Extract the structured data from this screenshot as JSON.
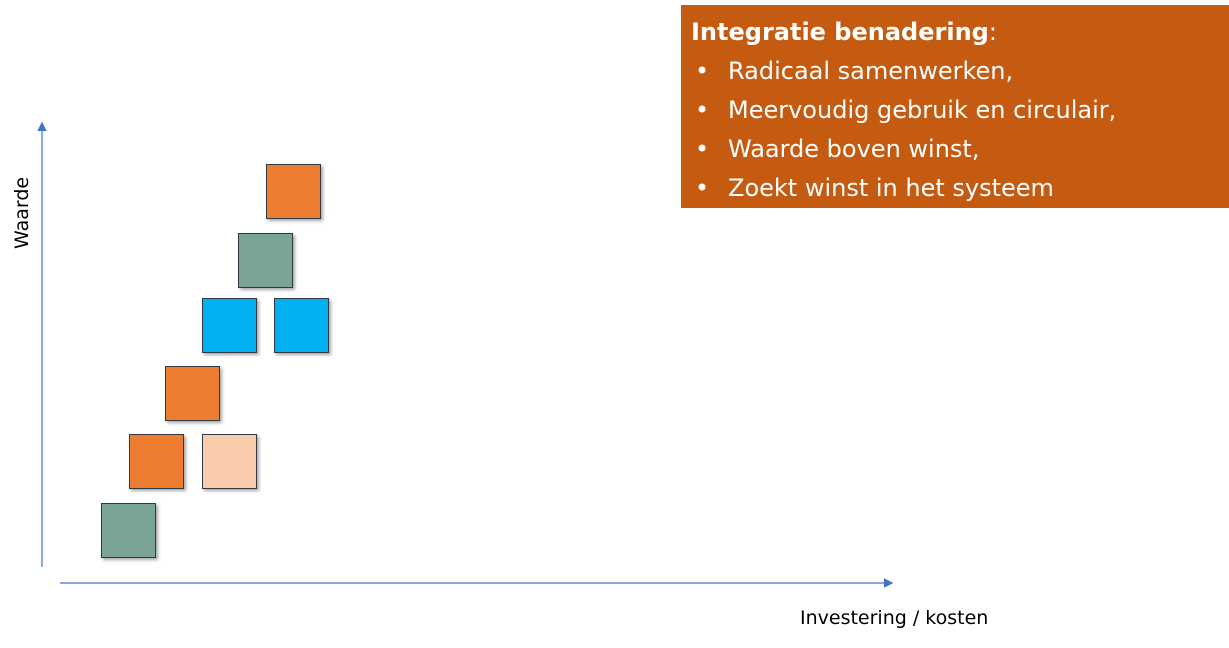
{
  "axes": {
    "y_label": "Waarde",
    "x_label": "Investering / kosten"
  },
  "box": {
    "title": "Integratie benadering",
    "title_suffix": ":",
    "bullets": [
      "Radicaal samenwerken,",
      "Meervoudig gebruik en circulair,",
      "Waarde boven winst,",
      "Zoekt winst in het systeem"
    ]
  }
}
